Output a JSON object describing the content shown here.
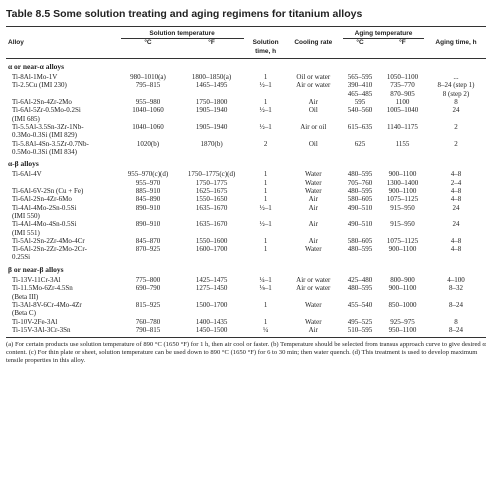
{
  "title": "Table 8.5   Some solution treating and aging regimens for titanium alloys",
  "table": {
    "groups": {
      "solution": "Solution temperature",
      "aging": "Aging temperature"
    },
    "columns": [
      "Alloy",
      "°C",
      "°F",
      "Solution\ntime, h",
      "Cooling rate",
      "°C",
      "°F",
      "Aging time, h"
    ],
    "sections": [
      {
        "title": "α or near-α alloys",
        "rows": [
          [
            "Ti-8Al-1Mo-1V",
            "980–1010(a)",
            "1800–1850(a)",
            "1",
            "Oil or water",
            "565–595",
            "1050–1100",
            "..."
          ],
          [
            "Ti-2.5Cu (IMI 230)",
            "795–815",
            "1465–1495",
            "½–1",
            "Air or water",
            "390–410\n465–485",
            "735–770\n870–905",
            "8–24 (step 1)\n8 (step 2)"
          ],
          [
            "Ti-6Al-2Sn-4Zr-2Mo",
            "955–980",
            "1750–1800",
            "1",
            "Air",
            "595",
            "1100",
            "8"
          ],
          [
            "Ti-6Al-5Zr-0.5Mo-0.2Si\n(IMI 685)",
            "1040–1060",
            "1905–1940",
            "½–1",
            "Oil",
            "540–560",
            "1005–1040",
            "24"
          ],
          [
            "Ti-5.5Al-3.5Sn-3Zr-1Nb-\n0.3Mo-0.3Si (IMI 829)",
            "1040–1060",
            "1905–1940",
            "½–1",
            "Air or oil",
            "615–635",
            "1140–1175",
            "2"
          ],
          [
            "Ti-5.8Al-4Sn-3.5Zr-0.7Nb-\n0.5Mo-0.3Si (IMI 834)",
            "1020(b)",
            "1870(b)",
            "2",
            "Oil",
            "625",
            "1155",
            "2"
          ]
        ]
      },
      {
        "title": "α-β alloys",
        "rows": [
          [
            "Ti-6Al-4V",
            "955–970(c)(d)\n955–970",
            "1750–1775(c)(d)\n1750–1775",
            "1\n1",
            "Water\nWater",
            "480–595\n705–760",
            "900–1100\n1300–1400",
            "4–8\n2–4"
          ],
          [
            "Ti-6Al-6V-2Sn (Cu + Fe)",
            "885–910",
            "1625–1675",
            "1",
            "Water",
            "480–595",
            "900–1100",
            "4–8"
          ],
          [
            "Ti-6Al-2Sn-4Zr-6Mo",
            "845–890",
            "1550–1650",
            "1",
            "Air",
            "580–605",
            "1075–1125",
            "4–8"
          ],
          [
            "Ti-4Al-4Mo-2Sn-0.5Si\n(IMI 550)",
            "890–910",
            "1635–1670",
            "½–1",
            "Air",
            "490–510",
            "915–950",
            "24"
          ],
          [
            "Ti-4Al-4Mo-4Sn-0.5Si\n(IMI 551)",
            "890–910",
            "1635–1670",
            "½–1",
            "Air",
            "490–510",
            "915–950",
            "24"
          ],
          [
            "Ti-5Al-2Sn-2Zr-4Mo-4Cr",
            "845–870",
            "1550–1600",
            "1",
            "Air",
            "580–605",
            "1075–1125",
            "4–8"
          ],
          [
            "Ti-6Al-2Sn-2Zr-2Mo-2Cr-\n0.25Si",
            "870–925",
            "1600–1700",
            "1",
            "Water",
            "480–595",
            "900–1100",
            "4–8"
          ]
        ]
      },
      {
        "title": "β or near-β alloys",
        "rows": [
          [
            "Ti-13V-11Cr-3Al",
            "775–800",
            "1425–1475",
            "¼–1",
            "Air or water",
            "425–480",
            "800–900",
            "4–100"
          ],
          [
            "Ti-11.5Mo-6Zr-4.5Sn\n(Beta III)",
            "690–790",
            "1275–1450",
            "⅛–1",
            "Air or water",
            "480–595",
            "900–1100",
            "8–32"
          ],
          [
            "Ti-3Al-8V-6Cr-4Mo-4Zr\n(Beta C)",
            "815–925",
            "1500–1700",
            "1",
            "Water",
            "455–540",
            "850–1000",
            "8–24"
          ],
          [
            "Ti-10V-2Fe-3Al",
            "760–780",
            "1400–1435",
            "1",
            "Water",
            "495–525",
            "925–975",
            "8"
          ],
          [
            "Ti-15V-3Al-3Cr-3Sn",
            "790–815",
            "1450–1500",
            "¼",
            "Air",
            "510–595",
            "950–1100",
            "8–24"
          ]
        ]
      }
    ]
  },
  "footnote": "(a) For certain products use solution temperature of 890 °C (1650 °F) for 1 h, then air cool or faster. (b) Temperature should be selected from transus approach curve to give desired α content. (c) For thin plate or sheet, solution temperature can be used down to 890 °C (1650 °F) for 6 to 30 min; then water quench. (d) This treatment is used to develop maximum tensile properties in this alloy."
}
